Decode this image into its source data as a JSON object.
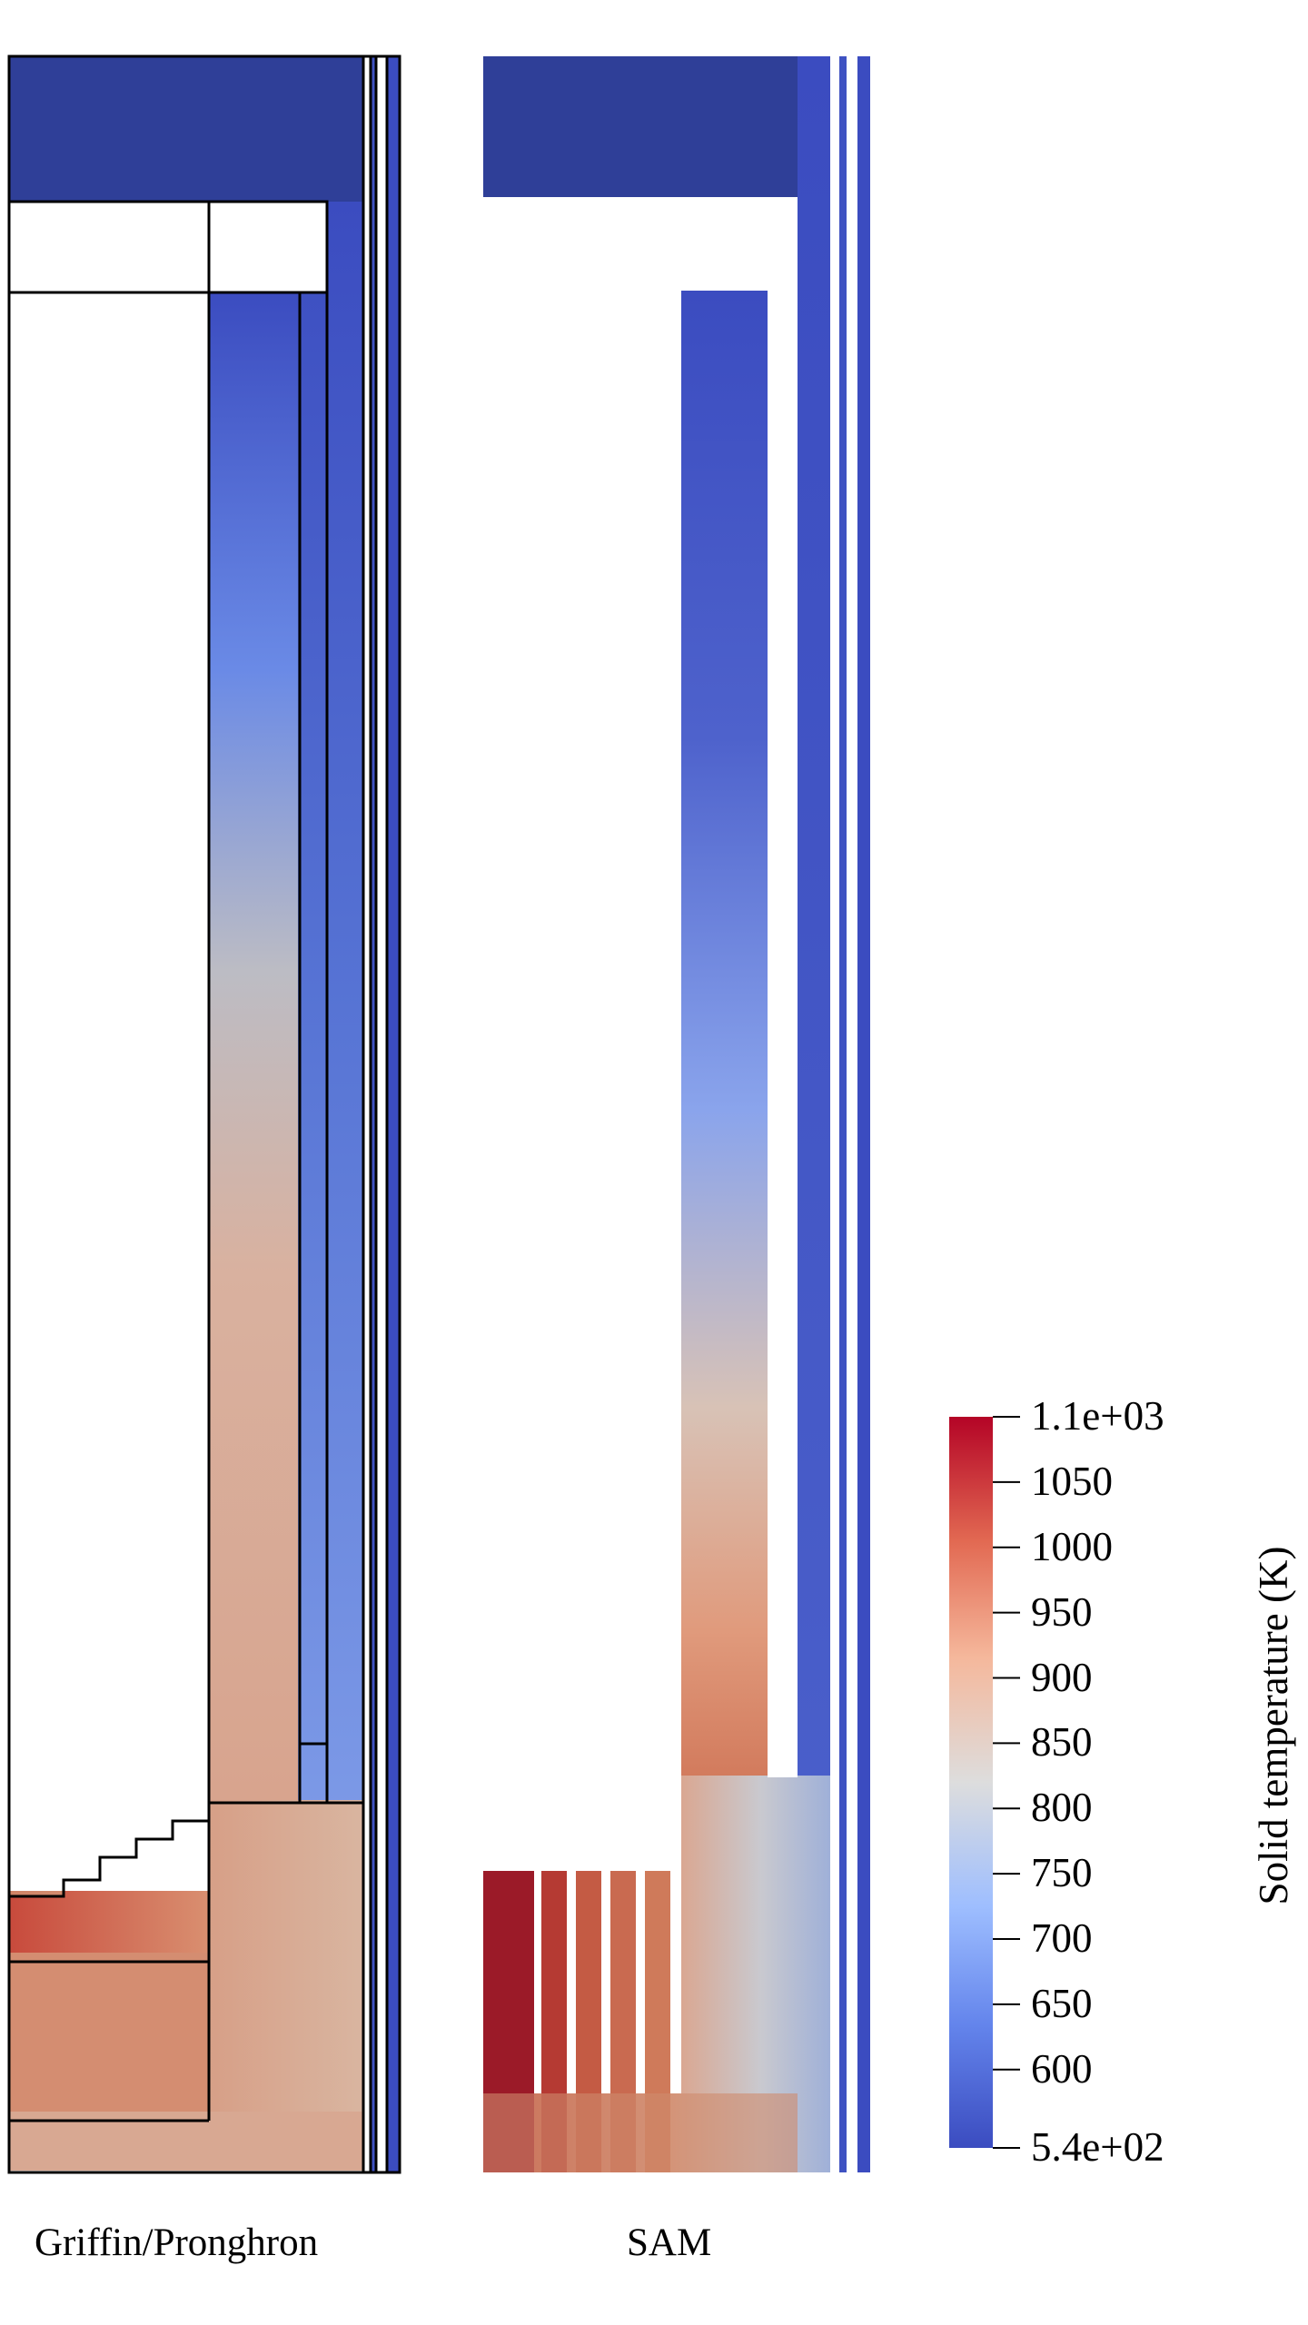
{
  "panels": {
    "left": {
      "label": "Griffin/Pronghron"
    },
    "right": {
      "label": "SAM"
    }
  },
  "colorbar": {
    "title": "Solid temperature (K)",
    "range": [
      540,
      1100
    ],
    "ticks": [
      {
        "value": 1100,
        "label": "1.1e+03"
      },
      {
        "value": 1050,
        "label": "1050"
      },
      {
        "value": 1000,
        "label": "1000"
      },
      {
        "value": 950,
        "label": "950"
      },
      {
        "value": 900,
        "label": "900"
      },
      {
        "value": 850,
        "label": "850"
      },
      {
        "value": 800,
        "label": "800"
      },
      {
        "value": 750,
        "label": "750"
      },
      {
        "value": 700,
        "label": "700"
      },
      {
        "value": 650,
        "label": "650"
      },
      {
        "value": 600,
        "label": "600"
      },
      {
        "value": 540,
        "label": "5.4e+02"
      }
    ],
    "colormap": "cool-to-warm",
    "colors": [
      "#3b4cc0",
      "#7b9ff9",
      "#c0d4f5",
      "#dddddd",
      "#f2cbb7",
      "#ee8468",
      "#b40426"
    ]
  }
}
